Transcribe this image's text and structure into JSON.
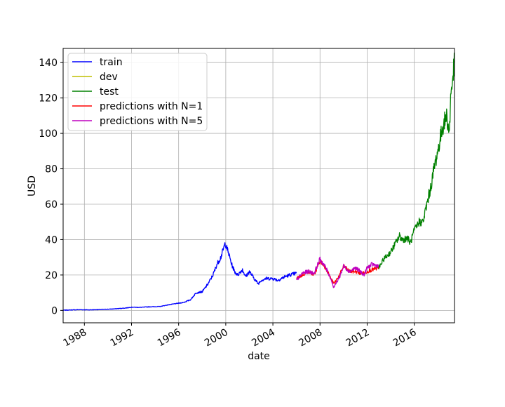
{
  "chart_data": {
    "type": "line",
    "xlabel": "date",
    "ylabel": "USD",
    "x_axis_type": "date",
    "xlim": [
      "1986-03-13",
      "2019-06-01"
    ],
    "ylim": [
      -7,
      148
    ],
    "x_ticks": [
      "1988",
      "1992",
      "1996",
      "2000",
      "2004",
      "2008",
      "2012",
      "2016"
    ],
    "y_ticks": [
      0,
      20,
      40,
      60,
      80,
      100,
      120,
      140
    ],
    "grid": true,
    "legend_position": "top-left",
    "colors": {
      "train": "#0000ff",
      "dev": "#bfbf00",
      "test": "#008000",
      "pred1": "#ff0000",
      "pred5": "#bf00bf"
    },
    "legend": [
      {
        "label": "train",
        "color": "#0000ff"
      },
      {
        "label": "dev",
        "color": "#bfbf00"
      },
      {
        "label": "test",
        "color": "#008000"
      },
      {
        "label": "predictions with N=1",
        "color": "#ff0000"
      },
      {
        "label": "predictions with N=5",
        "color": "#bf00bf"
      }
    ],
    "series": [
      {
        "key": "train",
        "color": "#0000ff",
        "points": [
          [
            "1986-03-13",
            0.1
          ],
          [
            "1987-01-01",
            0.3
          ],
          [
            "1987-09-01",
            0.4
          ],
          [
            "1988-06-01",
            0.3
          ],
          [
            "1989-06-01",
            0.5
          ],
          [
            "1990-06-01",
            0.8
          ],
          [
            "1991-06-01",
            1.3
          ],
          [
            "1992-01-01",
            1.8
          ],
          [
            "1992-10-01",
            1.7
          ],
          [
            "1993-06-01",
            2.0
          ],
          [
            "1994-06-01",
            2.2
          ],
          [
            "1995-01-01",
            3.0
          ],
          [
            "1995-10-01",
            3.8
          ],
          [
            "1996-06-01",
            4.5
          ],
          [
            "1997-01-01",
            6.0
          ],
          [
            "1997-07-01",
            10.0
          ],
          [
            "1998-01-01",
            10.5
          ],
          [
            "1998-07-01",
            15.0
          ],
          [
            "1998-12-01",
            20.0
          ],
          [
            "1999-04-01",
            26.0
          ],
          [
            "1999-08-01",
            30.0
          ],
          [
            "1999-12-15",
            38.0
          ],
          [
            "2000-04-01",
            32.0
          ],
          [
            "2000-07-01",
            26.0
          ],
          [
            "2000-10-01",
            22.0
          ],
          [
            "2001-01-01",
            20.0
          ],
          [
            "2001-06-01",
            23.0
          ],
          [
            "2001-09-15",
            19.0
          ],
          [
            "2002-01-01",
            22.0
          ],
          [
            "2002-06-01",
            18.0
          ],
          [
            "2002-10-01",
            15.0
          ],
          [
            "2003-01-01",
            17.0
          ],
          [
            "2003-06-01",
            18.0
          ],
          [
            "2004-01-01",
            18.0
          ],
          [
            "2004-06-01",
            17.0
          ],
          [
            "2005-01-01",
            19.0
          ],
          [
            "2005-06-01",
            20.0
          ],
          [
            "2006-01-01",
            21.0
          ]
        ]
      },
      {
        "key": "pred1",
        "color": "#ff0000",
        "points": [
          [
            "2006-01-01",
            18.0
          ],
          [
            "2006-07-01",
            20.0
          ],
          [
            "2007-01-01",
            22.0
          ],
          [
            "2007-07-01",
            20.0
          ],
          [
            "2008-01-01",
            28.0
          ],
          [
            "2008-07-01",
            24.0
          ],
          [
            "2008-12-01",
            18.0
          ],
          [
            "2009-03-01",
            15.0
          ],
          [
            "2009-09-01",
            20.0
          ],
          [
            "2010-01-01",
            25.0
          ],
          [
            "2010-07-01",
            22.0
          ],
          [
            "2011-01-01",
            22.0
          ],
          [
            "2011-06-01",
            21.0
          ],
          [
            "2011-10-01",
            21.0
          ],
          [
            "2012-01-01",
            22.0
          ],
          [
            "2012-06-01",
            23.0
          ],
          [
            "2013-01-01",
            24.0
          ]
        ]
      },
      {
        "key": "pred5",
        "color": "#bf00bf",
        "points": [
          [
            "2006-01-01",
            17.0
          ],
          [
            "2006-07-01",
            21.0
          ],
          [
            "2007-01-01",
            22.0
          ],
          [
            "2007-07-01",
            21.0
          ],
          [
            "2008-01-01",
            29.0
          ],
          [
            "2008-07-01",
            24.0
          ],
          [
            "2008-12-01",
            18.0
          ],
          [
            "2009-03-01",
            13.0
          ],
          [
            "2009-09-01",
            19.0
          ],
          [
            "2010-01-01",
            25.0
          ],
          [
            "2010-07-01",
            22.0
          ],
          [
            "2011-01-01",
            24.0
          ],
          [
            "2011-06-01",
            22.0
          ],
          [
            "2011-10-01",
            20.0
          ],
          [
            "2012-01-01",
            24.0
          ],
          [
            "2012-06-01",
            26.0
          ],
          [
            "2013-01-01",
            25.0
          ]
        ]
      },
      {
        "key": "test",
        "color": "#008000",
        "points": [
          [
            "2013-01-01",
            24.0
          ],
          [
            "2013-06-01",
            29.0
          ],
          [
            "2014-01-01",
            33.0
          ],
          [
            "2014-06-01",
            38.0
          ],
          [
            "2014-10-01",
            42.0
          ],
          [
            "2015-01-01",
            40.0
          ],
          [
            "2015-06-01",
            41.0
          ],
          [
            "2015-09-01",
            38.0
          ],
          [
            "2016-01-01",
            45.0
          ],
          [
            "2016-06-01",
            50.0
          ],
          [
            "2016-10-01",
            50.0
          ],
          [
            "2017-01-01",
            58.0
          ],
          [
            "2017-06-01",
            70.0
          ],
          [
            "2017-09-01",
            80.0
          ],
          [
            "2018-01-01",
            90.0
          ],
          [
            "2018-06-01",
            104.0
          ],
          [
            "2018-10-01",
            110.0
          ],
          [
            "2018-12-24",
            100.0
          ],
          [
            "2019-02-01",
            120.0
          ],
          [
            "2019-04-15",
            133.0
          ],
          [
            "2019-06-01",
            140.0
          ]
        ]
      }
    ]
  }
}
